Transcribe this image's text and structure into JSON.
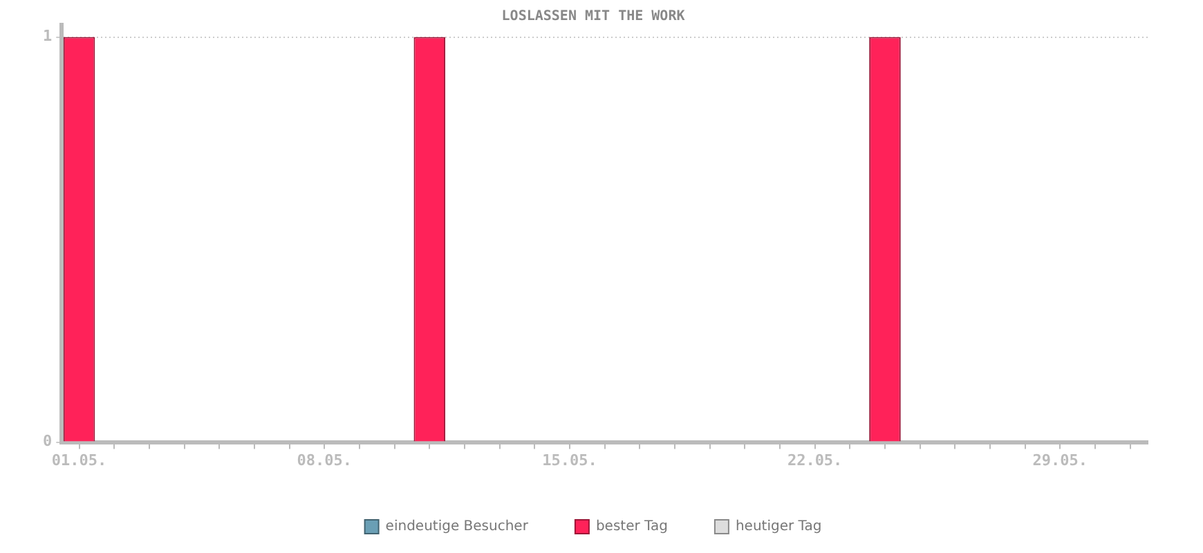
{
  "chart_data": {
    "type": "bar",
    "title": "LOSLASSEN MIT THE WORK",
    "categories": [
      "01.05.",
      null,
      null,
      null,
      null,
      null,
      null,
      "08.05.",
      null,
      null,
      null,
      null,
      null,
      null,
      "15.05.",
      null,
      null,
      null,
      null,
      null,
      null,
      "22.05.",
      null,
      null,
      null,
      null,
      null,
      null,
      "29.05.",
      null,
      null
    ],
    "series": [
      {
        "name": "eindeutige Besucher",
        "color": "#6a9fb5",
        "values": [
          null,
          null,
          null,
          null,
          null,
          null,
          null,
          null,
          null,
          null,
          null,
          null,
          null,
          null,
          null,
          null,
          null,
          null,
          null,
          null,
          null,
          null,
          null,
          null,
          null,
          null,
          null,
          null,
          null,
          null,
          null
        ]
      },
      {
        "name": "bester Tag",
        "color": "#ff2259",
        "values": [
          1,
          null,
          null,
          null,
          null,
          null,
          null,
          null,
          null,
          null,
          1,
          null,
          null,
          null,
          null,
          null,
          null,
          null,
          null,
          null,
          null,
          null,
          null,
          1,
          null,
          null,
          null,
          null,
          null,
          null,
          null
        ]
      },
      {
        "name": "heutiger Tag",
        "color": "#dddddd",
        "values": [
          null,
          null,
          null,
          null,
          null,
          null,
          null,
          null,
          null,
          null,
          null,
          null,
          null,
          null,
          null,
          null,
          null,
          null,
          null,
          null,
          null,
          null,
          null,
          null,
          null,
          null,
          null,
          null,
          null,
          null,
          null
        ]
      }
    ],
    "ylim": [
      0,
      1.03
    ],
    "yticks": [
      0,
      1
    ],
    "grid": "y",
    "legend": "bottom"
  }
}
